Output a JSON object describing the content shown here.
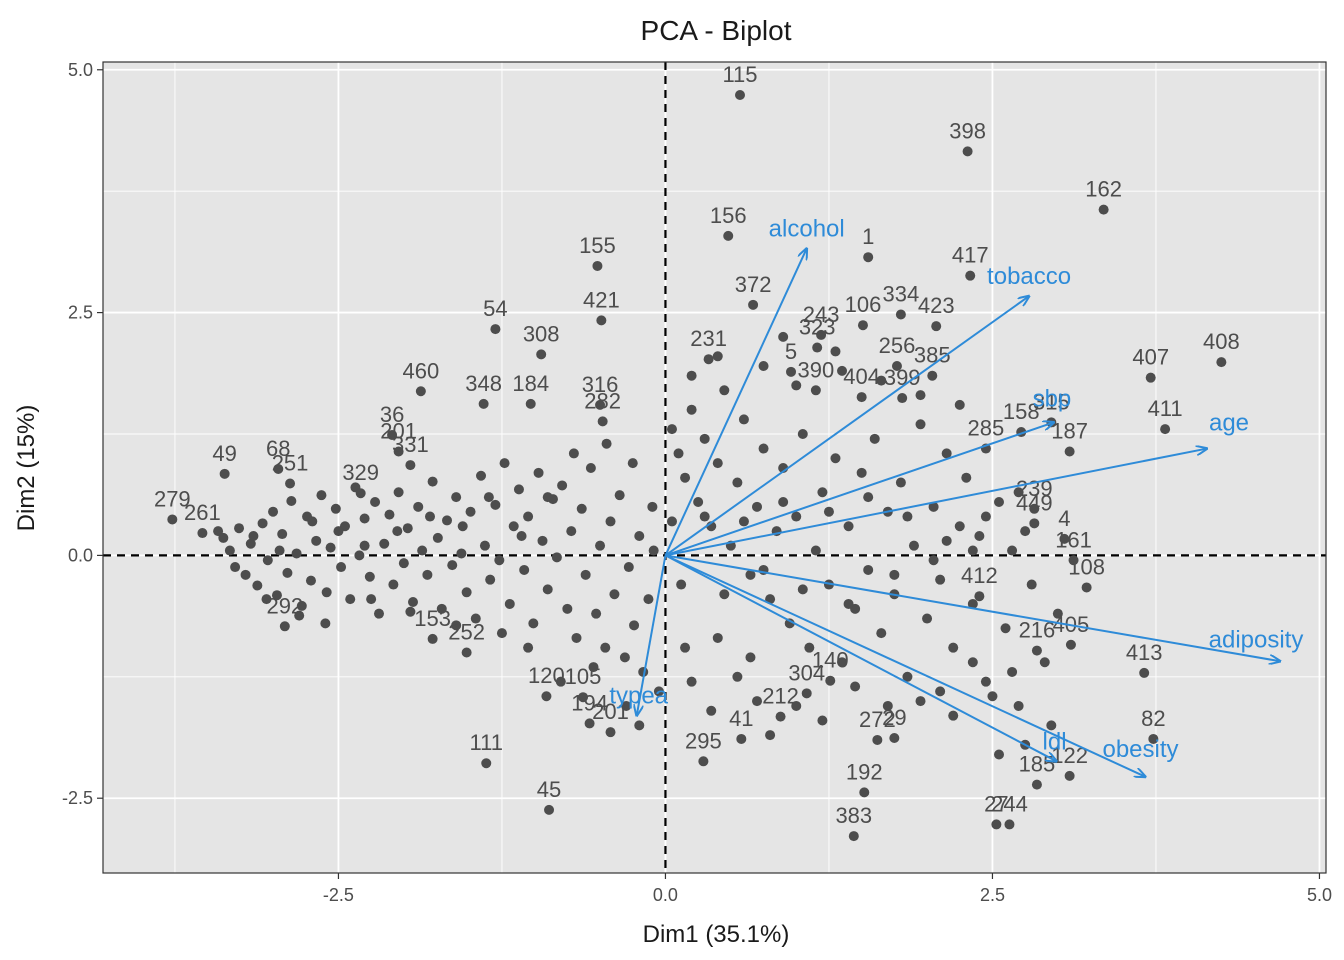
{
  "chart_data": {
    "type": "scatter",
    "title": "PCA - Biplot",
    "xlabel": "Dim1 (35.1%)",
    "ylabel": "Dim2 (15%)",
    "xlim": [
      -4.3,
      5.05
    ],
    "ylim": [
      -3.27,
      5.08
    ],
    "x_ticks": [
      -2.5,
      0.0,
      2.5,
      5.0
    ],
    "x_tick_labels": [
      "-2.5",
      "0.0",
      "2.5",
      "5.0"
    ],
    "y_ticks": [
      -2.5,
      0.0,
      2.5,
      5.0
    ],
    "y_tick_labels": [
      "-2.5",
      "0.0",
      "2.5",
      "5.0"
    ],
    "grid": true,
    "reference_lines": [
      {
        "axis": "x",
        "value": 0
      },
      {
        "axis": "y",
        "value": 0
      }
    ],
    "colors": {
      "points": "#4d4d4d",
      "vectors": "#2e8bd8",
      "panel": "#e5e5e5",
      "grid": "#ffffff"
    },
    "labeled_points": [
      {
        "label": "115",
        "x": 0.57,
        "y": 4.74
      },
      {
        "label": "398",
        "x": 2.31,
        "y": 4.16
      },
      {
        "label": "162",
        "x": 3.35,
        "y": 3.56
      },
      {
        "label": "156",
        "x": 0.48,
        "y": 3.29
      },
      {
        "label": "155",
        "x": -0.52,
        "y": 2.98
      },
      {
        "label": "1",
        "x": 1.55,
        "y": 3.07
      },
      {
        "label": "417",
        "x": 2.33,
        "y": 2.88
      },
      {
        "label": "421",
        "x": -0.49,
        "y": 2.42
      },
      {
        "label": "54",
        "x": -1.3,
        "y": 2.33
      },
      {
        "label": "308",
        "x": -0.95,
        "y": 2.07
      },
      {
        "label": "372",
        "x": 0.67,
        "y": 2.58
      },
      {
        "label": "106",
        "x": 1.51,
        "y": 2.37
      },
      {
        "label": "334",
        "x": 1.8,
        "y": 2.48
      },
      {
        "label": "423",
        "x": 2.07,
        "y": 2.36
      },
      {
        "label": "243",
        "x": 1.19,
        "y": 2.27
      },
      {
        "label": "323",
        "x": 1.16,
        "y": 2.14
      },
      {
        "label": "231",
        "x": 0.33,
        "y": 2.02
      },
      {
        "label": "256",
        "x": 1.77,
        "y": 1.95
      },
      {
        "label": "5",
        "x": 0.96,
        "y": 1.89
      },
      {
        "label": "385",
        "x": 2.04,
        "y": 1.85
      },
      {
        "label": "407",
        "x": 3.71,
        "y": 1.83
      },
      {
        "label": "408",
        "x": 4.25,
        "y": 1.99
      },
      {
        "label": "460",
        "x": -1.87,
        "y": 1.69
      },
      {
        "label": "348",
        "x": -1.39,
        "y": 1.56
      },
      {
        "label": "184",
        "x": -1.03,
        "y": 1.56
      },
      {
        "label": "316",
        "x": -0.5,
        "y": 1.55
      },
      {
        "label": "390",
        "x": 1.15,
        "y": 1.7
      },
      {
        "label": "404",
        "x": 1.5,
        "y": 1.63
      },
      {
        "label": "399",
        "x": 1.81,
        "y": 1.62
      },
      {
        "label": "282",
        "x": -0.48,
        "y": 1.38
      },
      {
        "label": "36",
        "x": -2.09,
        "y": 1.24
      },
      {
        "label": "411",
        "x": 3.82,
        "y": 1.3
      },
      {
        "label": "315",
        "x": 2.95,
        "y": 1.37
      },
      {
        "label": "158",
        "x": 2.72,
        "y": 1.27
      },
      {
        "label": "187",
        "x": 3.09,
        "y": 1.07
      },
      {
        "label": "285",
        "x": 2.45,
        "y": 1.1
      },
      {
        "label": "49",
        "x": -3.37,
        "y": 0.84
      },
      {
        "label": "68",
        "x": -2.96,
        "y": 0.89
      },
      {
        "label": "251",
        "x": -2.87,
        "y": 0.74
      },
      {
        "label": "329",
        "x": -2.33,
        "y": 0.64
      },
      {
        "label": "201",
        "x": -2.04,
        "y": 1.07
      },
      {
        "label": "331",
        "x": -1.95,
        "y": 0.93
      },
      {
        "label": "279",
        "x": -3.77,
        "y": 0.37
      },
      {
        "label": "261",
        "x": -3.54,
        "y": 0.23
      },
      {
        "label": "239",
        "x": 2.82,
        "y": 0.48
      },
      {
        "label": "449",
        "x": 2.82,
        "y": 0.33
      },
      {
        "label": "4",
        "x": 3.05,
        "y": 0.17
      },
      {
        "label": "161",
        "x": 3.12,
        "y": -0.05
      },
      {
        "label": "108",
        "x": 3.22,
        "y": -0.33
      },
      {
        "label": "412",
        "x": 2.4,
        "y": -0.42
      },
      {
        "label": "405",
        "x": 3.1,
        "y": -0.92
      },
      {
        "label": "216",
        "x": 2.84,
        "y": -0.98
      },
      {
        "label": "413",
        "x": 3.66,
        "y": -1.21
      },
      {
        "label": "82",
        "x": 3.73,
        "y": -1.89
      },
      {
        "label": "252",
        "x": -1.52,
        "y": -1.0
      },
      {
        "label": "292",
        "x": -2.91,
        "y": -0.73
      },
      {
        "label": "153",
        "x": -1.78,
        "y": -0.86
      },
      {
        "label": "120",
        "x": -0.91,
        "y": -1.45
      },
      {
        "label": "105",
        "x": -0.63,
        "y": -1.46
      },
      {
        "label": "194",
        "x": -0.58,
        "y": -1.73
      },
      {
        "label": "201b",
        "x": -0.42,
        "y": -1.82
      },
      {
        "label": "111",
        "x": -1.37,
        "y": -2.14
      },
      {
        "label": "45",
        "x": -0.89,
        "y": -2.62
      },
      {
        "label": "295",
        "x": 0.29,
        "y": -2.12
      },
      {
        "label": "41",
        "x": 0.58,
        "y": -1.89
      },
      {
        "label": "212",
        "x": 0.88,
        "y": -1.66
      },
      {
        "label": "304",
        "x": 1.08,
        "y": -1.42
      },
      {
        "label": "140",
        "x": 1.26,
        "y": -1.29
      },
      {
        "label": "272",
        "x": 1.62,
        "y": -1.9
      },
      {
        "label": "29",
        "x": 1.75,
        "y": -1.88
      },
      {
        "label": "192",
        "x": 1.52,
        "y": -2.44
      },
      {
        "label": "383",
        "x": 1.44,
        "y": -2.89
      },
      {
        "label": "27",
        "x": 2.53,
        "y": -2.77
      },
      {
        "label": "244",
        "x": 2.63,
        "y": -2.77
      },
      {
        "label": "122",
        "x": 3.09,
        "y": -2.27
      },
      {
        "label": "185",
        "x": 2.84,
        "y": -2.36
      }
    ],
    "other_points": [
      [
        -3.42,
        0.25
      ],
      [
        -3.38,
        0.18
      ],
      [
        -3.33,
        0.05
      ],
      [
        -3.29,
        -0.12
      ],
      [
        -3.26,
        0.28
      ],
      [
        -3.21,
        -0.2
      ],
      [
        -3.17,
        0.12
      ],
      [
        -3.12,
        -0.31
      ],
      [
        -3.08,
        0.33
      ],
      [
        -3.04,
        -0.05
      ],
      [
        -3.0,
        0.45
      ],
      [
        -2.97,
        -0.41
      ],
      [
        -2.93,
        0.22
      ],
      [
        -2.89,
        -0.18
      ],
      [
        -2.86,
        0.56
      ],
      [
        -2.82,
        0.02
      ],
      [
        -2.78,
        -0.52
      ],
      [
        -2.74,
        0.4
      ],
      [
        -2.71,
        -0.26
      ],
      [
        -2.67,
        0.15
      ],
      [
        -2.63,
        0.62
      ],
      [
        -2.59,
        -0.38
      ],
      [
        -2.56,
        0.08
      ],
      [
        -2.52,
        0.48
      ],
      [
        -2.48,
        -0.12
      ],
      [
        -2.45,
        0.3
      ],
      [
        -2.41,
        -0.45
      ],
      [
        -2.37,
        0.7
      ],
      [
        -2.34,
        0.0
      ],
      [
        -2.3,
        0.38
      ],
      [
        -2.26,
        -0.22
      ],
      [
        -2.22,
        0.55
      ],
      [
        -2.19,
        -0.6
      ],
      [
        -2.15,
        0.12
      ],
      [
        -2.11,
        0.42
      ],
      [
        -2.08,
        -0.3
      ],
      [
        -2.04,
        0.65
      ],
      [
        -2.0,
        -0.08
      ],
      [
        -1.97,
        0.28
      ],
      [
        -1.93,
        -0.48
      ],
      [
        -1.89,
        0.5
      ],
      [
        -1.86,
        0.05
      ],
      [
        -1.82,
        -0.2
      ],
      [
        -1.78,
        0.76
      ],
      [
        -1.74,
        0.18
      ],
      [
        -1.71,
        -0.55
      ],
      [
        -1.67,
        0.36
      ],
      [
        -1.63,
        -0.1
      ],
      [
        -1.6,
        0.6
      ],
      [
        -1.56,
        0.02
      ],
      [
        -1.52,
        -0.38
      ],
      [
        -1.49,
        0.45
      ],
      [
        -1.45,
        -0.65
      ],
      [
        -1.41,
        0.82
      ],
      [
        -1.38,
        0.1
      ],
      [
        -1.34,
        -0.25
      ],
      [
        -1.3,
        0.52
      ],
      [
        -1.27,
        -0.05
      ],
      [
        -1.23,
        0.95
      ],
      [
        -1.19,
        -0.5
      ],
      [
        -1.16,
        0.3
      ],
      [
        -1.12,
        0.68
      ],
      [
        -1.08,
        -0.15
      ],
      [
        -1.05,
        0.4
      ],
      [
        -1.01,
        -0.7
      ],
      [
        -0.97,
        0.85
      ],
      [
        -0.94,
        0.15
      ],
      [
        -0.9,
        -0.35
      ],
      [
        -0.86,
        0.58
      ],
      [
        -0.83,
        -0.02
      ],
      [
        -0.79,
        0.72
      ],
      [
        -0.75,
        -0.55
      ],
      [
        -0.72,
        0.25
      ],
      [
        -0.68,
        -0.85
      ],
      [
        -0.64,
        0.48
      ],
      [
        -0.61,
        -0.2
      ],
      [
        -0.57,
        0.9
      ],
      [
        -0.53,
        -0.6
      ],
      [
        -0.5,
        0.1
      ],
      [
        -0.46,
        -0.95
      ],
      [
        -0.42,
        0.35
      ],
      [
        -0.39,
        -0.4
      ],
      [
        -0.35,
        0.62
      ],
      [
        -0.31,
        -1.05
      ],
      [
        -0.28,
        -0.12
      ],
      [
        -0.24,
        -0.72
      ],
      [
        -0.2,
        0.2
      ],
      [
        -0.17,
        -1.2
      ],
      [
        -0.13,
        -0.45
      ],
      [
        -0.09,
        0.05
      ],
      [
        0.05,
        1.3
      ],
      [
        0.1,
        1.05
      ],
      [
        0.15,
        0.8
      ],
      [
        0.2,
        1.5
      ],
      [
        0.25,
        0.55
      ],
      [
        0.3,
        1.2
      ],
      [
        0.35,
        0.3
      ],
      [
        0.4,
        0.95
      ],
      [
        0.45,
        1.7
      ],
      [
        0.5,
        0.1
      ],
      [
        0.55,
        0.75
      ],
      [
        0.6,
        1.4
      ],
      [
        0.65,
        -0.2
      ],
      [
        0.7,
        0.5
      ],
      [
        0.75,
        1.1
      ],
      [
        0.8,
        -0.45
      ],
      [
        0.85,
        0.25
      ],
      [
        0.9,
        0.9
      ],
      [
        0.95,
        -0.7
      ],
      [
        1.0,
        0.4
      ],
      [
        1.05,
        1.25
      ],
      [
        1.1,
        -0.95
      ],
      [
        1.15,
        0.05
      ],
      [
        1.2,
        0.65
      ],
      [
        1.25,
        -0.3
      ],
      [
        1.3,
        1.0
      ],
      [
        1.35,
        -1.1
      ],
      [
        1.4,
        0.3
      ],
      [
        1.45,
        -0.55
      ],
      [
        1.5,
        0.85
      ],
      [
        1.55,
        -0.15
      ],
      [
        1.6,
        1.2
      ],
      [
        1.65,
        -0.8
      ],
      [
        1.7,
        0.45
      ],
      [
        1.75,
        -0.4
      ],
      [
        1.8,
        0.75
      ],
      [
        1.85,
        -1.25
      ],
      [
        1.9,
        0.1
      ],
      [
        1.95,
        1.35
      ],
      [
        2.0,
        -0.65
      ],
      [
        2.05,
        0.5
      ],
      [
        2.1,
        -0.25
      ],
      [
        2.15,
        1.05
      ],
      [
        2.2,
        -0.95
      ],
      [
        2.25,
        0.3
      ],
      [
        2.3,
        0.8
      ],
      [
        2.35,
        -0.5
      ],
      [
        2.4,
        0.2
      ],
      [
        2.45,
        -1.3
      ],
      [
        2.55,
        0.55
      ],
      [
        2.6,
        -0.75
      ],
      [
        2.65,
        0.05
      ],
      [
        2.7,
        -1.55
      ],
      [
        2.75,
        0.25
      ],
      [
        2.8,
        -0.3
      ],
      [
        2.9,
        -1.1
      ],
      [
        3.0,
        -0.6
      ],
      [
        2.95,
        -1.75
      ],
      [
        2.5,
        -1.45
      ],
      [
        2.65,
        -1.2
      ],
      [
        2.2,
        -1.65
      ],
      [
        1.95,
        -1.5
      ],
      [
        0.55,
        -1.25
      ],
      [
        0.35,
        -1.6
      ],
      [
        0.8,
        -1.85
      ],
      [
        1.0,
        -1.55
      ],
      [
        0.15,
        -0.95
      ],
      [
        -0.05,
        -1.4
      ],
      [
        0.4,
        -0.85
      ],
      [
        0.65,
        -1.05
      ],
      [
        -0.8,
        -1.3
      ],
      [
        -0.55,
        -1.15
      ],
      [
        -1.05,
        -0.95
      ],
      [
        -1.25,
        -0.8
      ],
      [
        -1.6,
        -0.72
      ],
      [
        -1.95,
        -0.58
      ],
      [
        -2.25,
        -0.45
      ],
      [
        -2.6,
        -0.7
      ],
      [
        -2.8,
        -0.62
      ],
      [
        -3.05,
        -0.45
      ],
      [
        -0.3,
        -1.55
      ],
      [
        -0.2,
        -1.75
      ],
      [
        0.2,
        -1.3
      ],
      [
        0.7,
        -1.5
      ],
      [
        1.2,
        -1.7
      ],
      [
        1.45,
        -1.35
      ],
      [
        1.7,
        -1.55
      ],
      [
        2.1,
        -1.4
      ],
      [
        2.35,
        -1.1
      ],
      [
        2.55,
        -2.05
      ],
      [
        2.75,
        -1.95
      ],
      [
        0.05,
        0.35
      ],
      [
        0.12,
        -0.3
      ],
      [
        -0.1,
        0.5
      ],
      [
        -0.25,
        0.95
      ],
      [
        -0.45,
        1.15
      ],
      [
        -0.7,
        1.05
      ],
      [
        -0.9,
        0.6
      ],
      [
        -1.1,
        0.2
      ],
      [
        -1.35,
        0.6
      ],
      [
        -1.55,
        0.3
      ],
      [
        -1.8,
        0.4
      ],
      [
        -2.05,
        0.25
      ],
      [
        -2.3,
        0.1
      ],
      [
        -2.5,
        0.25
      ],
      [
        -2.7,
        0.35
      ],
      [
        -2.95,
        0.05
      ],
      [
        -3.15,
        0.2
      ],
      [
        0.3,
        0.4
      ],
      [
        0.6,
        0.35
      ],
      [
        0.9,
        0.55
      ],
      [
        1.25,
        0.45
      ],
      [
        1.55,
        0.6
      ],
      [
        1.85,
        0.4
      ],
      [
        2.15,
        0.15
      ],
      [
        2.45,
        0.4
      ],
      [
        2.7,
        0.65
      ],
      [
        0.45,
        -0.4
      ],
      [
        0.75,
        -0.15
      ],
      [
        1.05,
        -0.35
      ],
      [
        1.4,
        -0.5
      ],
      [
        1.75,
        -0.2
      ],
      [
        2.05,
        -0.05
      ],
      [
        2.35,
        0.05
      ],
      [
        0.2,
        1.85
      ],
      [
        0.4,
        2.05
      ],
      [
        0.75,
        1.95
      ],
      [
        1.0,
        1.75
      ],
      [
        1.35,
        1.9
      ],
      [
        1.65,
        1.8
      ],
      [
        1.95,
        1.65
      ],
      [
        2.25,
        1.55
      ],
      [
        0.9,
        2.25
      ],
      [
        1.3,
        2.1
      ]
    ],
    "vectors": [
      {
        "label": "alcohol",
        "x": 1.08,
        "y": 3.16
      },
      {
        "label": "tobacco",
        "x": 2.78,
        "y": 2.67
      },
      {
        "label": "sbp",
        "x": 2.97,
        "y": 1.37
      },
      {
        "label": "age",
        "x": 4.14,
        "y": 1.1
      },
      {
        "label": "adiposity",
        "x": 4.7,
        "y": -1.09
      },
      {
        "label": "obesity",
        "x": 3.67,
        "y": -2.28
      },
      {
        "label": "ldl",
        "x": 2.99,
        "y": -2.12
      },
      {
        "label": "typea",
        "x": -0.22,
        "y": -1.65
      }
    ]
  }
}
